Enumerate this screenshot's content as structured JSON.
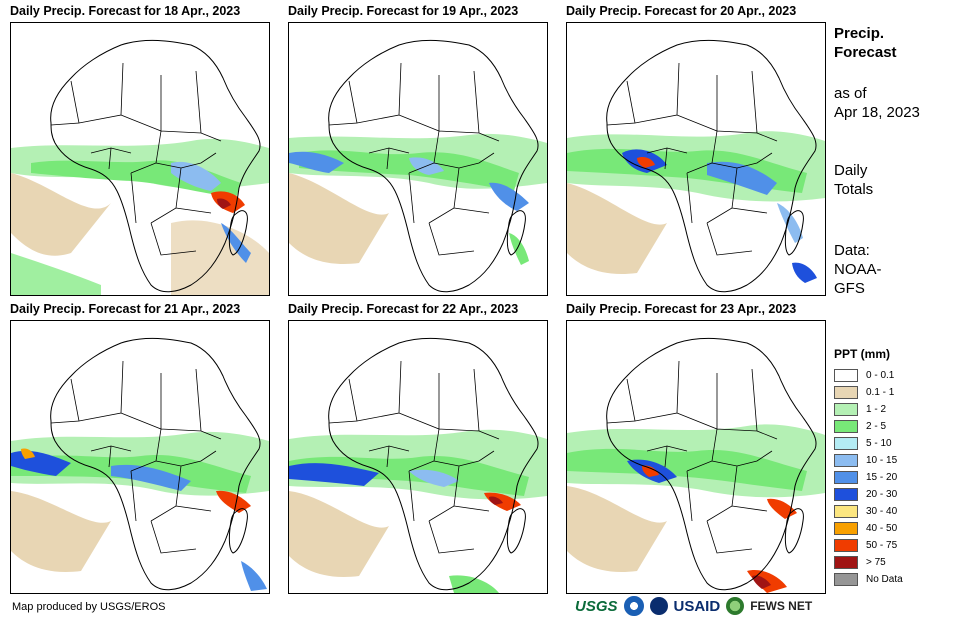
{
  "panels": [
    {
      "title": "Daily Precip. Forecast for 18 Apr., 2023"
    },
    {
      "title": "Daily Precip. Forecast for 19 Apr., 2023"
    },
    {
      "title": "Daily Precip. Forecast for 20 Apr., 2023"
    },
    {
      "title": "Daily Precip. Forecast for 21 Apr., 2023"
    },
    {
      "title": "Daily Precip. Forecast for 22 Apr., 2023"
    },
    {
      "title": "Daily Precip. Forecast for 23 Apr., 2023"
    }
  ],
  "sidebar": {
    "title_line1": "Precip.",
    "title_line2": "Forecast",
    "asof_line1": "as of",
    "asof_line2": "Apr 18, 2023",
    "daily_line1": "Daily",
    "daily_line2": "Totals",
    "data_line1": "Data:",
    "data_line2": "NOAA-",
    "data_line3": "GFS"
  },
  "legend": {
    "title": "PPT (mm)",
    "items": [
      {
        "label": "0 - 0.1",
        "color": "#ffffff"
      },
      {
        "label": "0.1 - 1",
        "color": "#e8d6b4"
      },
      {
        "label": "1 - 2",
        "color": "#b4f0b4"
      },
      {
        "label": "2 - 5",
        "color": "#78e878"
      },
      {
        "label": "5 - 10",
        "color": "#b4ecf4"
      },
      {
        "label": "10 - 15",
        "color": "#8cbcf0"
      },
      {
        "label": "15 - 20",
        "color": "#5090e8"
      },
      {
        "label": "20 - 30",
        "color": "#1e50dc"
      },
      {
        "label": "30 - 40",
        "color": "#fce680"
      },
      {
        "label": "40 - 50",
        "color": "#f8a000"
      },
      {
        "label": "50 - 75",
        "color": "#f03c00"
      },
      {
        "label": "> 75",
        "color": "#a01414"
      },
      {
        "label": "No Data",
        "color": "#969696"
      }
    ]
  },
  "footer": {
    "credit": "Map produced by USGS/EROS",
    "logo_usgs": "USGS",
    "logo_usaid": "USAID",
    "logo_fews": "FEWS NET"
  }
}
